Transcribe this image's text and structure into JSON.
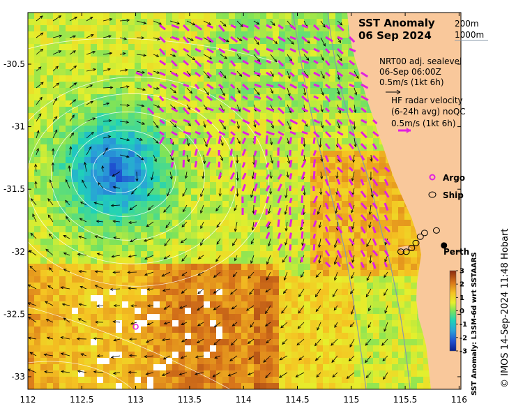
{
  "map": {
    "title_line1": "SST Anomaly",
    "title_line2": "06 Sep 2024",
    "bathymetry_legend": [
      "200m",
      "1000m"
    ],
    "sealevel_legend": [
      "NRT00 adj. sealevel",
      "06-Sep 06:00Z",
      "0.5m/s (1kt 6h)"
    ],
    "radar_legend": [
      "HF radar velocity",
      "(6-24h avg) noQC",
      "0.5m/s (1kt 6h)"
    ],
    "argo_label": "Argo",
    "ship_label": "Ship",
    "city_label": "Perth",
    "credit": "© IMOS 14-Sep-2024 11:48 Hobart",
    "colorbar_label": "SST Anomaly: L3SM-6d wrt SSTAARS",
    "colorbar_ticks": [
      "3",
      "2",
      "1",
      "0",
      "-1",
      "-2",
      "-3"
    ],
    "colorbar_range": [
      -3,
      3
    ],
    "x_ticks": [
      "112",
      "112.5",
      "113",
      "113.5",
      "114",
      "114.5",
      "115",
      "115.5",
      "116"
    ],
    "y_ticks": [
      "-30.5",
      "-31",
      "-31.5",
      "-32",
      "-32.5",
      "-33"
    ],
    "lon_range": [
      112,
      116
    ],
    "lat_range": [
      -33.1,
      -30.1
    ],
    "argo_position": {
      "lon": 113.0,
      "lat": -32.6
    },
    "perth_position": {
      "lon": 115.86,
      "lat": -31.95
    },
    "ship_positions": [
      {
        "lon": 115.68,
        "lat": -31.85
      },
      {
        "lon": 115.64,
        "lat": -31.88
      },
      {
        "lon": 115.6,
        "lat": -31.93
      },
      {
        "lon": 115.56,
        "lat": -31.97
      },
      {
        "lon": 115.51,
        "lat": -32.0
      },
      {
        "lon": 115.46,
        "lat": -32.0
      },
      {
        "lon": 115.79,
        "lat": -31.83
      }
    ],
    "colors": {
      "land": "#f9c89b",
      "radar_vector": "#e020e0",
      "argo": "#e020e0",
      "contour": "#ffffff",
      "bathymetry": "#8a9aa8"
    }
  }
}
